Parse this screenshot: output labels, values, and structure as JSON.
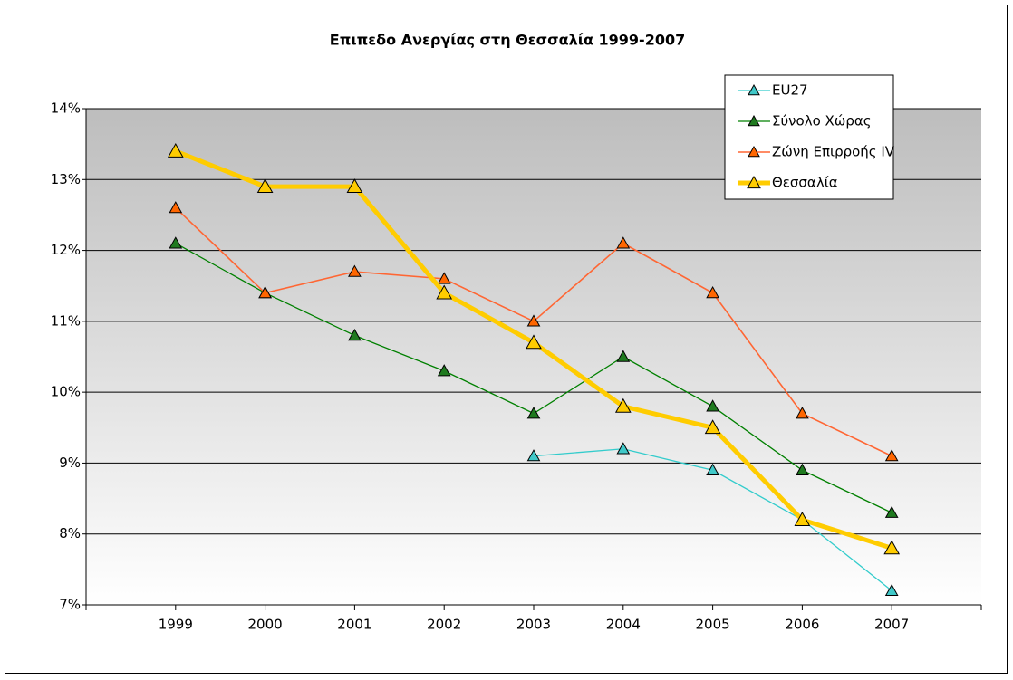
{
  "chart_data": {
    "type": "line",
    "title": "Επιπεδο Ανεργίας στη Θεσσαλία 1999-2007",
    "categories": [
      "1999",
      "2000",
      "2001",
      "2002",
      "2003",
      "2004",
      "2005",
      "2006",
      "2007"
    ],
    "series": [
      {
        "name": "EU27",
        "color": "#33cccc",
        "values": [
          null,
          null,
          null,
          null,
          9.1,
          9.2,
          8.9,
          8.2,
          7.2
        ]
      },
      {
        "name": "Σύνολο Χώρας",
        "color": "#008000",
        "values": [
          12.1,
          11.4,
          10.8,
          10.3,
          9.7,
          10.5,
          9.8,
          8.9,
          8.3
        ]
      },
      {
        "name": "Ζώνη Επιρροής IV",
        "color": "#ff6633",
        "values": [
          12.6,
          11.4,
          11.7,
          11.6,
          11.0,
          12.1,
          11.4,
          9.7,
          9.1
        ]
      },
      {
        "name": "Θεσσαλία",
        "color": "#ffcc00",
        "values": [
          13.4,
          12.9,
          12.9,
          11.4,
          10.7,
          9.8,
          9.5,
          8.2,
          7.8
        ]
      }
    ],
    "ylim": [
      7,
      14
    ],
    "yticks": [
      {
        "value": 7,
        "label": "7%"
      },
      {
        "value": 8,
        "label": "8%"
      },
      {
        "value": 9,
        "label": "9%"
      },
      {
        "value": 10,
        "label": "10%"
      },
      {
        "value": 11,
        "label": "11%"
      },
      {
        "value": 12,
        "label": "12%"
      },
      {
        "value": 13,
        "label": "13%"
      },
      {
        "value": 14,
        "label": "14%"
      }
    ],
    "grid": true,
    "legend": "top-right"
  }
}
